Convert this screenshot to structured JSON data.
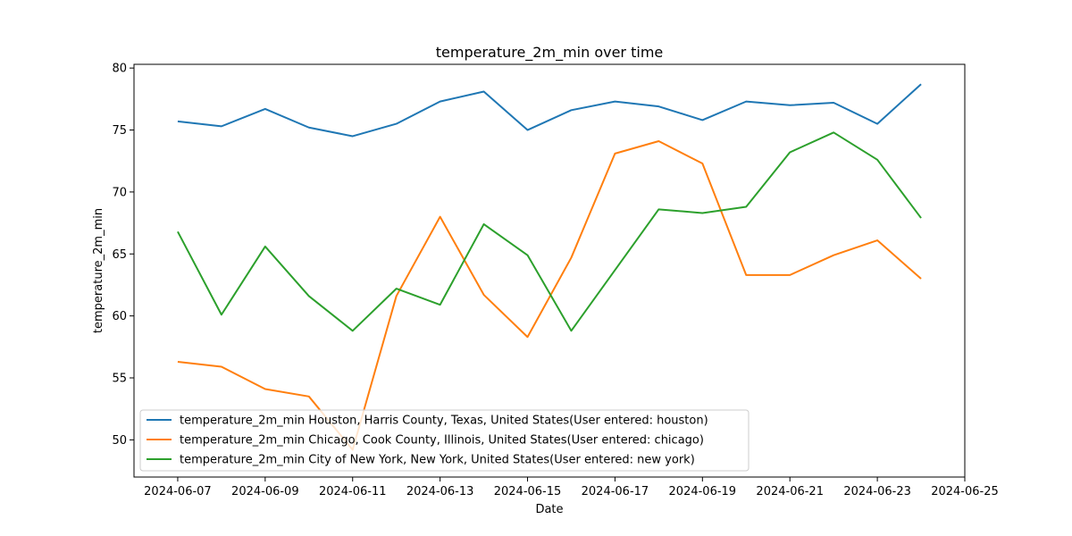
{
  "chart_data": {
    "type": "line",
    "title": "temperature_2m_min over time",
    "xlabel": "Date",
    "ylabel": "temperature_2m_min",
    "x": [
      "2024-06-07",
      "2024-06-08",
      "2024-06-09",
      "2024-06-10",
      "2024-06-11",
      "2024-06-12",
      "2024-06-13",
      "2024-06-14",
      "2024-06-15",
      "2024-06-16",
      "2024-06-17",
      "2024-06-18",
      "2024-06-19",
      "2024-06-20",
      "2024-06-21",
      "2024-06-22",
      "2024-06-23",
      "2024-06-24"
    ],
    "xlim": [
      "2024-06-06",
      "2024-06-25"
    ],
    "x_ticks": [
      "2024-06-07",
      "2024-06-09",
      "2024-06-11",
      "2024-06-13",
      "2024-06-15",
      "2024-06-17",
      "2024-06-19",
      "2024-06-21",
      "2024-06-23",
      "2024-06-25"
    ],
    "ylim": [
      47,
      80.3
    ],
    "y_ticks": [
      50,
      55,
      60,
      65,
      70,
      75,
      80
    ],
    "grid": false,
    "legend_position": "lower-left",
    "series": [
      {
        "name": "temperature_2m_min Houston, Harris County, Texas, United States(User entered: houston)",
        "color": "#1f77b4",
        "values": [
          75.7,
          75.3,
          76.7,
          75.2,
          74.5,
          75.5,
          77.3,
          78.1,
          75.0,
          76.6,
          77.3,
          76.9,
          75.8,
          77.3,
          77.0,
          77.2,
          75.5,
          78.7
        ]
      },
      {
        "name": "temperature_2m_min Chicago, Cook County, Illinois, United States(User entered: chicago)",
        "color": "#ff7f0e",
        "values": [
          56.3,
          55.9,
          54.1,
          53.5,
          49.2,
          61.6,
          68.0,
          61.7,
          58.3,
          64.7,
          73.1,
          74.1,
          72.3,
          63.3,
          63.3,
          64.9,
          66.1,
          63.0
        ]
      },
      {
        "name": "temperature_2m_min City of New York, New York, United States(User entered: new york)",
        "color": "#2ca02c",
        "values": [
          66.8,
          60.1,
          65.6,
          61.6,
          58.8,
          62.2,
          60.9,
          67.4,
          64.9,
          58.8,
          63.7,
          68.6,
          68.3,
          68.8,
          73.2,
          74.8,
          72.6,
          67.9
        ]
      }
    ]
  }
}
